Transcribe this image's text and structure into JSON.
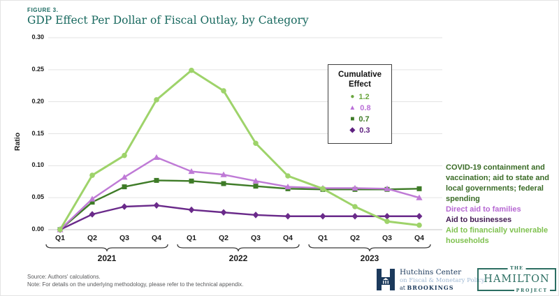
{
  "header": {
    "figure_label": "FIGURE 3.",
    "title": "GDP Effect Per Dollar of Fiscal Outlay, by Category"
  },
  "colors": {
    "title_teal": "#17685e",
    "gridline": "#e3e3e3",
    "axis_line": "#c6c6c6",
    "brace": "#3a3a3a",
    "navy": "#1c3a5c",
    "light_blue": "#9fb9d4",
    "hamilton_teal": "#2c6e62"
  },
  "chart_data": {
    "type": "line",
    "title": "GDP Effect Per Dollar of Fiscal Outlay, by Category",
    "xlabel": "",
    "ylabel": "Ratio",
    "ylim": [
      0,
      0.3
    ],
    "ytick_step": 0.05,
    "yticks": [
      "0.00",
      "0.05",
      "0.10",
      "0.15",
      "0.20",
      "0.25",
      "0.30"
    ],
    "grid": true,
    "x_groups": [
      {
        "year": "2021",
        "quarters": [
          "Q1",
          "Q2",
          "Q3",
          "Q4"
        ]
      },
      {
        "year": "2022",
        "quarters": [
          "Q1",
          "Q2",
          "Q3",
          "Q4"
        ]
      },
      {
        "year": "2023",
        "quarters": [
          "Q1",
          "Q2",
          "Q3",
          "Q4"
        ]
      }
    ],
    "legend": {
      "title": "Cumulative Effect",
      "position": "top-right",
      "entries": [
        {
          "marker": "circle",
          "value": "1.2",
          "color": "#6aa63e"
        },
        {
          "marker": "triangle",
          "value": "0.8",
          "color": "#ba6fd8"
        },
        {
          "marker": "square",
          "value": "0.7",
          "color": "#3e7b27"
        },
        {
          "marker": "diamond",
          "value": "0.3",
          "color": "#5e2180"
        }
      ]
    },
    "series": [
      {
        "name": "Aid to financially vulnerable households",
        "cumulative_effect": 1.2,
        "marker": "circle",
        "color": "#9ed36a",
        "label_color": "#7fc14f",
        "line_width": 3,
        "values": [
          0.0,
          0.085,
          0.116,
          0.203,
          0.249,
          0.217,
          0.135,
          0.084,
          0.064,
          0.036,
          0.013,
          0.007
        ]
      },
      {
        "name": "Direct aid to families",
        "cumulative_effect": 0.8,
        "marker": "triangle",
        "color": "#bf7ad6",
        "label_color": "#b667d2",
        "line_width": 2.4,
        "values": [
          0.0,
          0.048,
          0.082,
          0.113,
          0.091,
          0.086,
          0.076,
          0.067,
          0.065,
          0.065,
          0.064,
          0.05
        ]
      },
      {
        "name": "COVID-19 containment and vaccination; aid to state and local governments; federal spending",
        "cumulative_effect": 0.7,
        "marker": "square",
        "color": "#3e7b27",
        "label_color": "#3a6b26",
        "line_width": 2.4,
        "values": [
          0.0,
          0.043,
          0.067,
          0.077,
          0.076,
          0.072,
          0.068,
          0.064,
          0.063,
          0.063,
          0.063,
          0.064
        ]
      },
      {
        "name": "Aid to businesses",
        "cumulative_effect": 0.3,
        "marker": "diamond",
        "color": "#6a2a8a",
        "label_color": "#421a52",
        "line_width": 2.4,
        "values": [
          0.0,
          0.024,
          0.036,
          0.038,
          0.031,
          0.027,
          0.023,
          0.021,
          0.021,
          0.021,
          0.021,
          0.021
        ]
      }
    ],
    "right_label_order": [
      2,
      1,
      3,
      0
    ],
    "draw_order": [
      2,
      3,
      1,
      0
    ]
  },
  "footer": {
    "source": "Source: Authors' calculations.",
    "note": "Note: For details on the underlying methodology, please refer to the technical appendix."
  },
  "logos": {
    "hutchins": {
      "line1": "Hutchins Center",
      "line2": "on Fiscal & Monetary Policy",
      "line3_prefix": "at ",
      "line3_name": "BROOKINGS"
    },
    "hamilton": {
      "the": "THE",
      "name": "HAMILTON",
      "project": "PROJECT"
    }
  }
}
